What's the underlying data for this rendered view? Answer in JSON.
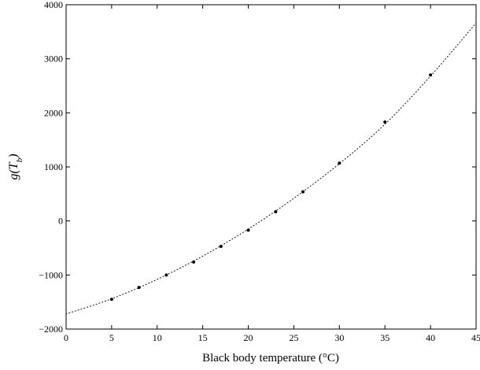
{
  "chart_data": {
    "type": "scatter",
    "xlabel": "Black body temperature (°C)",
    "ylabel": "g(Tb)",
    "ylabel_main": "g(T",
    "ylabel_sub": "b",
    "ylabel_close": ")",
    "xlim": [
      0,
      45
    ],
    "ylim": [
      -2000,
      4000
    ],
    "xticks": [
      0,
      5,
      10,
      15,
      20,
      25,
      30,
      35,
      40,
      45
    ],
    "xtick_labels": [
      "0",
      "5",
      "10",
      "15",
      "20",
      "25",
      "30",
      "35",
      "40",
      "45"
    ],
    "yticks": [
      -2000,
      -1000,
      0,
      1000,
      2000,
      3000,
      4000
    ],
    "ytick_labels": [
      "−2000",
      "−1000",
      "0",
      "1000",
      "2000",
      "3000",
      "4000"
    ],
    "grid": false,
    "series": [
      {
        "style": "points",
        "color": "#000000",
        "x": [
          5,
          8,
          11,
          14,
          17,
          20,
          23,
          26,
          30,
          35,
          40
        ],
        "y": [
          -1450,
          -1230,
          -1000,
          -760,
          -470,
          -170,
          170,
          540,
          1070,
          1830,
          2700
        ]
      },
      {
        "style": "dotted-line",
        "color": "#000000",
        "x": [
          0,
          5,
          10,
          15,
          20,
          25,
          30,
          35,
          40,
          45
        ],
        "y": [
          -1720,
          -1440,
          -1080,
          -650,
          -150,
          420,
          1060,
          1790,
          2680,
          3660
        ]
      }
    ]
  }
}
